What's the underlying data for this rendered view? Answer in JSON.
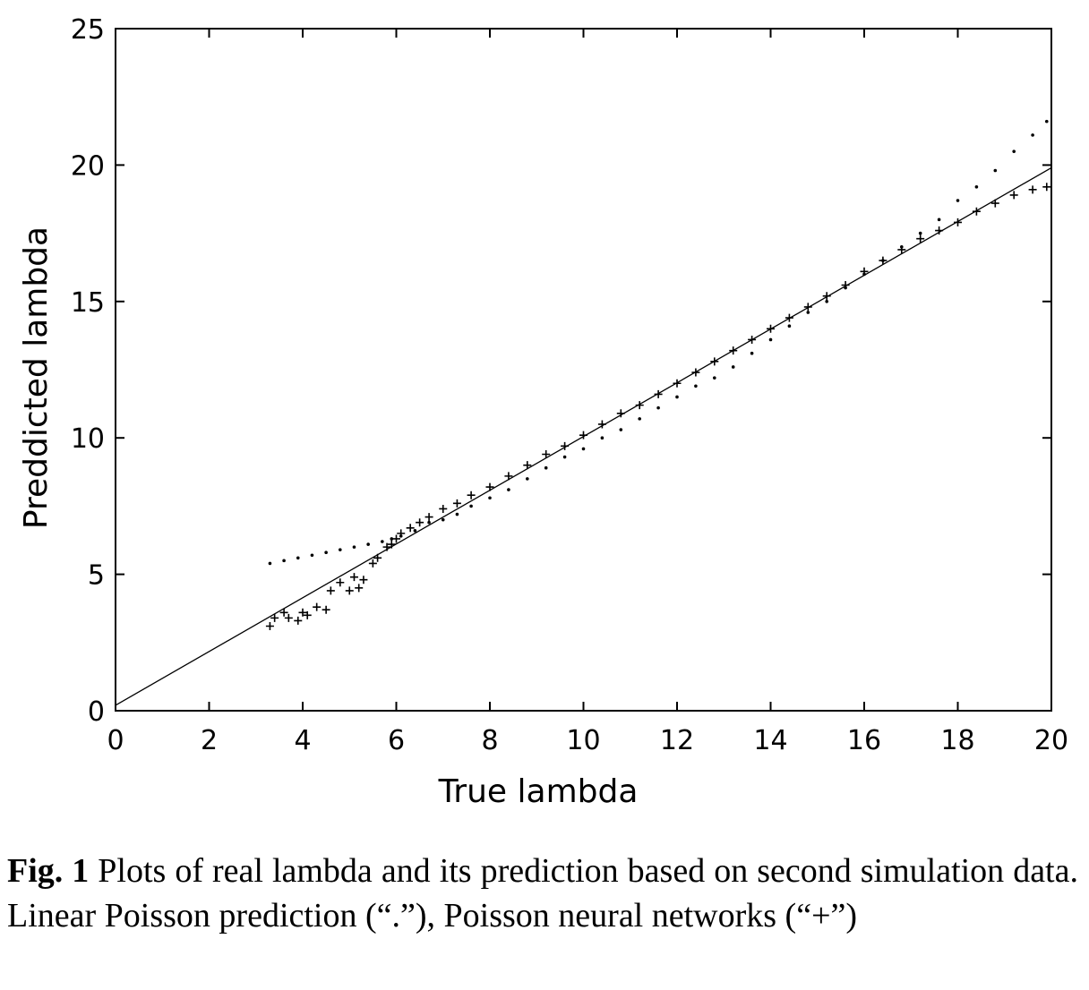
{
  "chart_data": {
    "type": "scatter",
    "xlabel": "True lambda",
    "ylabel": "Preddicted lambda",
    "xlim": [
      0,
      20
    ],
    "ylim": [
      0,
      25
    ],
    "xticks": [
      0,
      2,
      4,
      6,
      8,
      10,
      12,
      14,
      16,
      18,
      20
    ],
    "yticks": [
      0,
      5,
      10,
      15,
      20,
      25
    ],
    "grid": false,
    "reference_line": {
      "x": [
        0,
        20
      ],
      "y": [
        0.2,
        19.9
      ]
    },
    "series": [
      {
        "marker": ".",
        "x": [
          3.3,
          3.6,
          3.9,
          4.2,
          4.5,
          4.8,
          5.1,
          5.4,
          5.7,
          5.9,
          6.1,
          6.4,
          6.7,
          7.0,
          7.3,
          7.6,
          8.0,
          8.4,
          8.8,
          9.2,
          9.6,
          10.0,
          10.4,
          10.8,
          11.2,
          11.6,
          12.0,
          12.4,
          12.8,
          13.2,
          13.6,
          14.0,
          14.4,
          14.8,
          15.2,
          15.6,
          16.0,
          16.4,
          16.8,
          17.2,
          17.6,
          18.0,
          18.4,
          18.8,
          19.2,
          19.6,
          19.9
        ],
        "y": [
          5.4,
          5.5,
          5.6,
          5.7,
          5.8,
          5.9,
          6.0,
          6.1,
          6.2,
          6.3,
          6.4,
          6.6,
          6.9,
          7.0,
          7.2,
          7.5,
          7.8,
          8.1,
          8.5,
          8.9,
          9.3,
          9.6,
          10.0,
          10.3,
          10.7,
          11.1,
          11.5,
          11.9,
          12.2,
          12.6,
          13.1,
          13.6,
          14.1,
          14.6,
          15.0,
          15.5,
          16.0,
          16.5,
          17.0,
          17.5,
          18.0,
          18.7,
          19.2,
          19.8,
          20.5,
          21.1,
          21.6
        ]
      },
      {
        "marker": "+",
        "x": [
          3.3,
          3.4,
          3.6,
          3.7,
          3.9,
          4.0,
          4.1,
          4.3,
          4.5,
          4.6,
          4.8,
          5.0,
          5.1,
          5.2,
          5.3,
          5.5,
          5.6,
          5.8,
          5.9,
          6.0,
          6.1,
          6.3,
          6.5,
          6.7,
          7.0,
          7.3,
          7.6,
          8.0,
          8.4,
          8.8,
          9.2,
          9.6,
          10.0,
          10.4,
          10.8,
          11.2,
          11.6,
          12.0,
          12.4,
          12.8,
          13.2,
          13.6,
          14.0,
          14.4,
          14.8,
          15.2,
          15.6,
          16.0,
          16.4,
          16.8,
          17.2,
          17.6,
          18.0,
          18.4,
          18.8,
          19.2,
          19.6,
          19.9
        ],
        "y": [
          3.1,
          3.4,
          3.6,
          3.4,
          3.3,
          3.6,
          3.5,
          3.8,
          3.7,
          4.4,
          4.7,
          4.4,
          4.9,
          4.5,
          4.8,
          5.4,
          5.6,
          6.0,
          6.1,
          6.3,
          6.5,
          6.7,
          6.9,
          7.1,
          7.4,
          7.6,
          7.9,
          8.2,
          8.6,
          9.0,
          9.4,
          9.7,
          10.1,
          10.5,
          10.9,
          11.2,
          11.6,
          12.0,
          12.4,
          12.8,
          13.2,
          13.6,
          14.0,
          14.4,
          14.8,
          15.2,
          15.6,
          16.1,
          16.5,
          16.9,
          17.3,
          17.6,
          17.9,
          18.3,
          18.6,
          18.9,
          19.1,
          19.2
        ]
      }
    ]
  },
  "caption": {
    "label": "Fig. 1",
    "text": " Plots of real lambda and its prediction based on second simulation data. Linear Poisson prediction (“.”), Poisson neural networks (“+”)"
  }
}
